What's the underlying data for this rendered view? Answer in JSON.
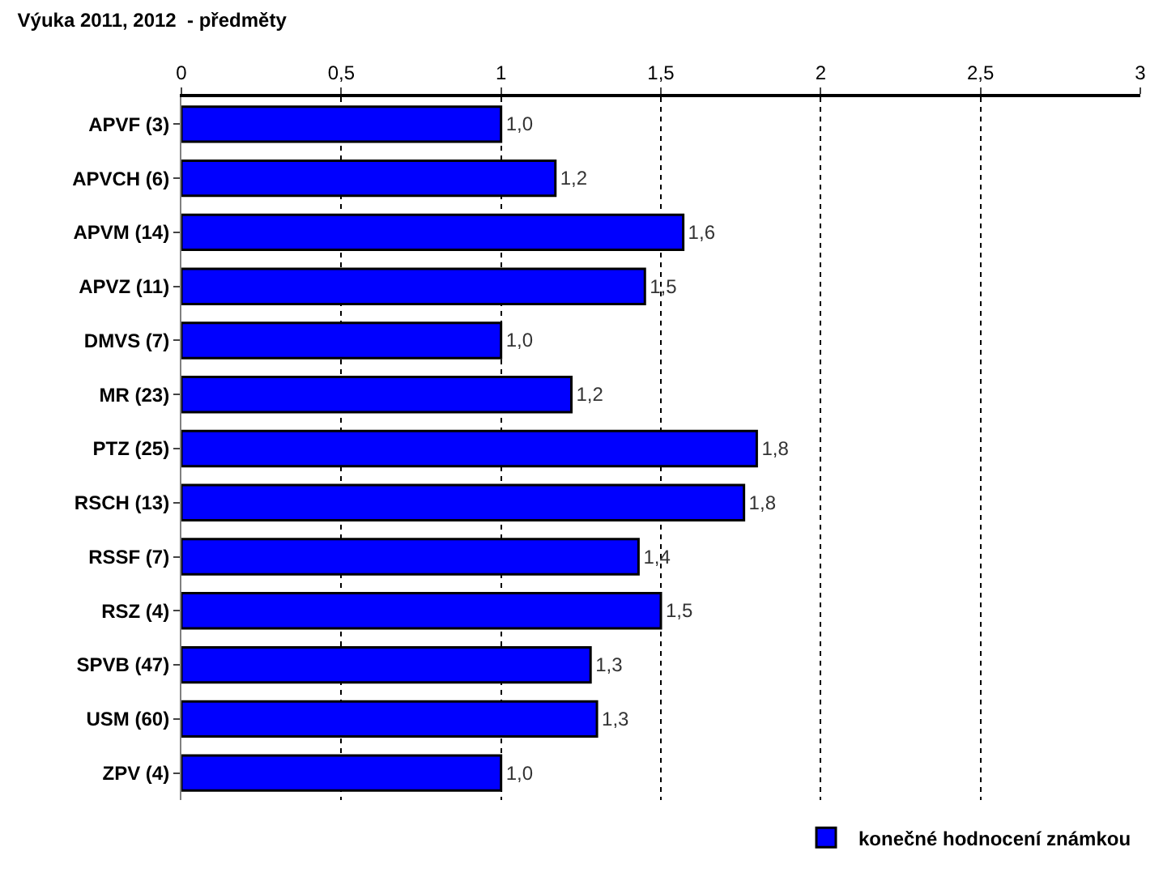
{
  "chart_data": {
    "type": "bar",
    "orientation": "horizontal",
    "title": "Výuka 2011, 2012  - předměty",
    "categories": [
      "APVF (3)",
      "APVCH (6)",
      "APVM (14)",
      "APVZ (11)",
      "DMVS (7)",
      "MR (23)",
      "PTZ (25)",
      "RSCH (13)",
      "RSSF (7)",
      "RSZ (4)",
      "SPVB (47)",
      "USM (60)",
      "ZPV (4)"
    ],
    "series": [
      {
        "name": "konečné hodnocení známkou",
        "color": "#0000ff",
        "values": [
          1.0,
          1.17,
          1.57,
          1.45,
          1.0,
          1.22,
          1.8,
          1.76,
          1.43,
          1.5,
          1.28,
          1.3,
          1.0
        ],
        "value_labels": [
          "1,0",
          "1,2",
          "1,6",
          "1,5",
          "1,0",
          "1,2",
          "1,8",
          "1,8",
          "1,4",
          "1,5",
          "1,3",
          "1,3",
          "1,0"
        ]
      }
    ],
    "xlim": [
      0,
      3
    ],
    "xticks": [
      0,
      {
        "value": 0.5,
        "label": "0,5"
      },
      1,
      {
        "value": 1.5,
        "label": "1,5"
      },
      2,
      {
        "value": 2.5,
        "label": "2,5"
      },
      3
    ],
    "grid": "x",
    "legend": "bottom right"
  }
}
